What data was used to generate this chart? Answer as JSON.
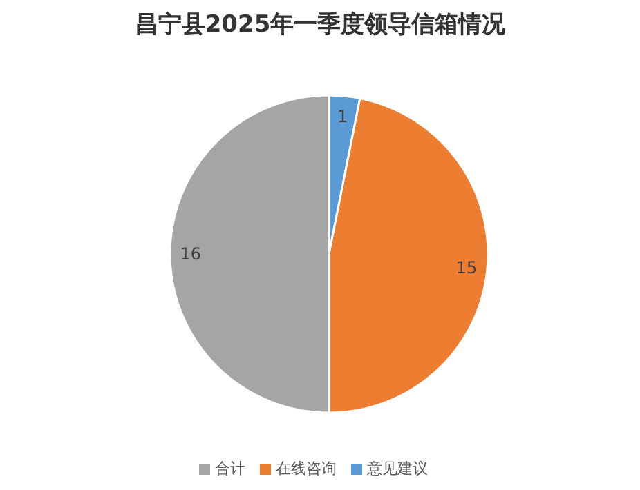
{
  "chart_data": {
    "type": "pie",
    "title": "昌宁县2025年一季度领导信箱情况",
    "categories": [
      "意见建议",
      "在线咨询",
      "合计"
    ],
    "values": [
      1,
      15,
      16
    ],
    "colors": [
      "#5b9bd5",
      "#ed7d31",
      "#a5a5a5"
    ],
    "data_labels": true,
    "legend": "bottom"
  }
}
